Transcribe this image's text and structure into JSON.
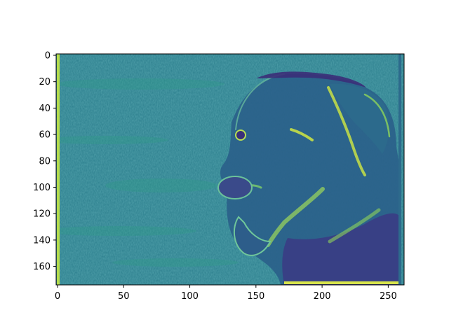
{
  "figure": {
    "image_description_colormap": "viridis"
  },
  "axes": {
    "x_ticks": [
      "0",
      "50",
      "100",
      "150",
      "200",
      "250"
    ],
    "y_ticks": [
      "0",
      "20",
      "40",
      "60",
      "80",
      "100",
      "120",
      "140",
      "160"
    ],
    "x_range": [
      0,
      262
    ],
    "y_range": [
      0,
      174
    ],
    "grid": false
  },
  "colors": {
    "background_teal": "#2a7d8c",
    "dark_purple": "#3b2d78",
    "bright_yellow": "#c8e045",
    "mid_green": "#2fa57f",
    "frame": "#000000"
  }
}
